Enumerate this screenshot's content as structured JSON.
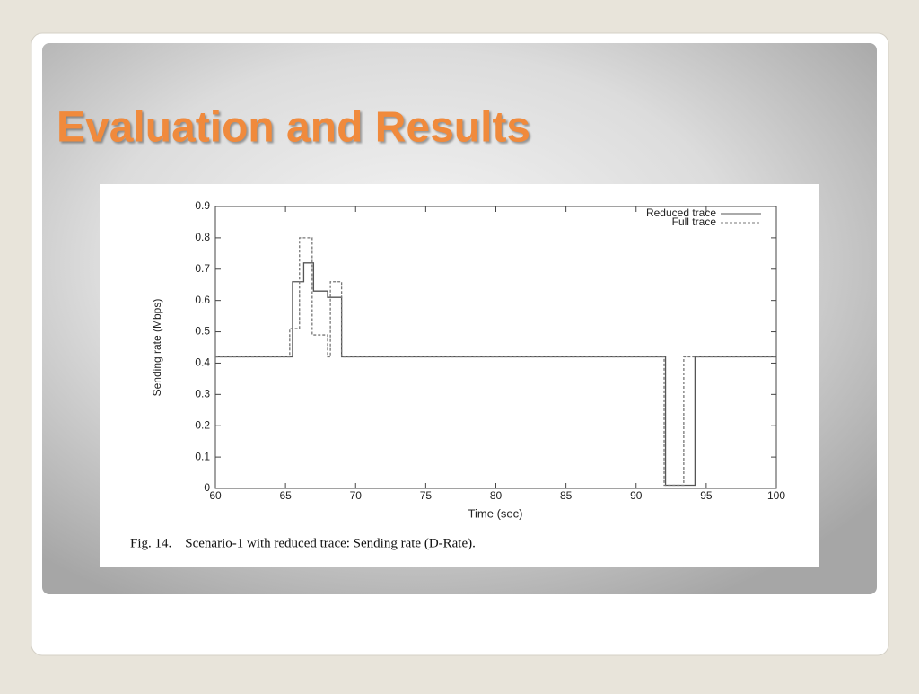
{
  "slide_title": "Evaluation and Results",
  "figure_caption": "Fig. 14.    Scenario-1 with reduced trace: Sending rate (D-Rate).",
  "chart_data": {
    "type": "line",
    "x_label": "Time (sec)",
    "y_label": "Sending rate (Mbps)",
    "xlim": [
      60,
      100
    ],
    "xticks": [
      60,
      65,
      70,
      75,
      80,
      85,
      90,
      95,
      100
    ],
    "ylim": [
      0,
      0.9
    ],
    "yticks": [
      0,
      0.1,
      0.2,
      0.3,
      0.4,
      0.5,
      0.6,
      0.7,
      0.8,
      0.9
    ],
    "legend": "top-right",
    "series": [
      {
        "name": "Reduced trace",
        "color": "#555555",
        "dash": "solid",
        "x": [
          60,
          65.5,
          65.5,
          66.3,
          66.3,
          67,
          67,
          68,
          68,
          69,
          69,
          92.1,
          92.1,
          94.2,
          94.2,
          100
        ],
        "values": [
          0.42,
          0.42,
          0.66,
          0.66,
          0.72,
          0.72,
          0.63,
          0.63,
          0.61,
          0.61,
          0.42,
          0.42,
          0.01,
          0.01,
          0.42,
          0.42
        ]
      },
      {
        "name": "Full trace",
        "color": "#777777",
        "dash": "dashed",
        "x": [
          60,
          65.3,
          65.3,
          66,
          66,
          66.9,
          66.9,
          68,
          68,
          68.2,
          68.2,
          69,
          69,
          92,
          92,
          93.4,
          93.4,
          100
        ],
        "values": [
          0.42,
          0.42,
          0.51,
          0.51,
          0.8,
          0.8,
          0.49,
          0.49,
          0.42,
          0.42,
          0.66,
          0.66,
          0.42,
          0.42,
          0.01,
          0.01,
          0.42,
          0.42
        ]
      }
    ]
  }
}
